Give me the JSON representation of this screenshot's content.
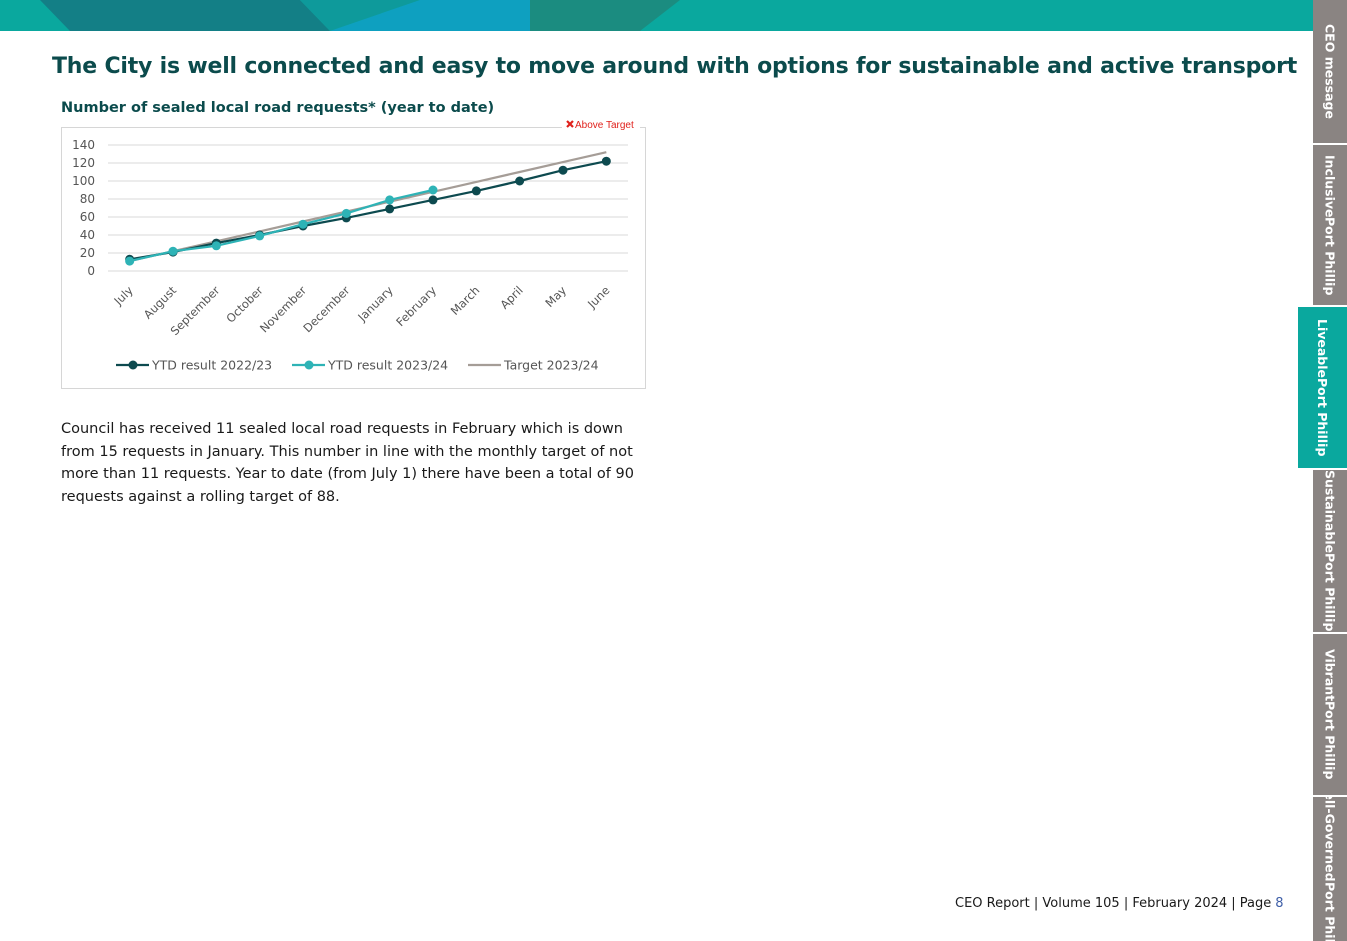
{
  "heading": "The City is well connected and easy to move around with options for sustainable and active transport",
  "chart_data": {
    "type": "line",
    "title": "Number of sealed local road requests* (year to date)",
    "annotation": "Above Target",
    "categories": [
      "July",
      "August",
      "September",
      "October",
      "November",
      "December",
      "January",
      "February",
      "March",
      "April",
      "May",
      "June"
    ],
    "series": [
      {
        "name": "YTD result 2022/23",
        "color": "#0d4a4f",
        "markers": true,
        "values": [
          13,
          21,
          31,
          40,
          50,
          59,
          69,
          79,
          89,
          100,
          112,
          122
        ]
      },
      {
        "name": "YTD result 2023/24",
        "color": "#2eb3b6",
        "markers": true,
        "values": [
          11,
          22,
          28,
          39,
          52,
          64,
          79,
          90,
          null,
          null,
          null,
          null
        ]
      },
      {
        "name": "Target 2023/24",
        "color": "#a59d97",
        "markers": false,
        "values": [
          11,
          22,
          33,
          44,
          55,
          66,
          77,
          88,
          99,
          110,
          121,
          132
        ]
      }
    ],
    "ylim": [
      0,
      140
    ],
    "yticks": [
      0,
      20,
      40,
      60,
      80,
      100,
      120,
      140
    ],
    "grid": true,
    "legend": "bottom"
  },
  "body": "Council has received 11 sealed local road requests in February which is down from 15 requests in January. This number in line with the monthly target of not more than 11 requests. Year to date (from July 1) there have been a total of 90 requests against a rolling target of 88.",
  "footer": {
    "text": "CEO Report | Volume 105 | February 2024 | Page",
    "page": 8
  },
  "tabs": [
    {
      "lines": [
        "CEO message"
      ]
    },
    {
      "lines": [
        "Inclusive",
        "Port Phillip"
      ]
    },
    {
      "lines": [
        "Liveable",
        "Port Phillip"
      ]
    },
    {
      "lines": [
        "Sustainable",
        "Port Phillip"
      ]
    },
    {
      "lines": [
        "Vibrant",
        "Port Phillip"
      ]
    },
    {
      "lines": [
        "Well-Governed",
        "Port Phillip"
      ]
    }
  ],
  "active_tab": 2
}
